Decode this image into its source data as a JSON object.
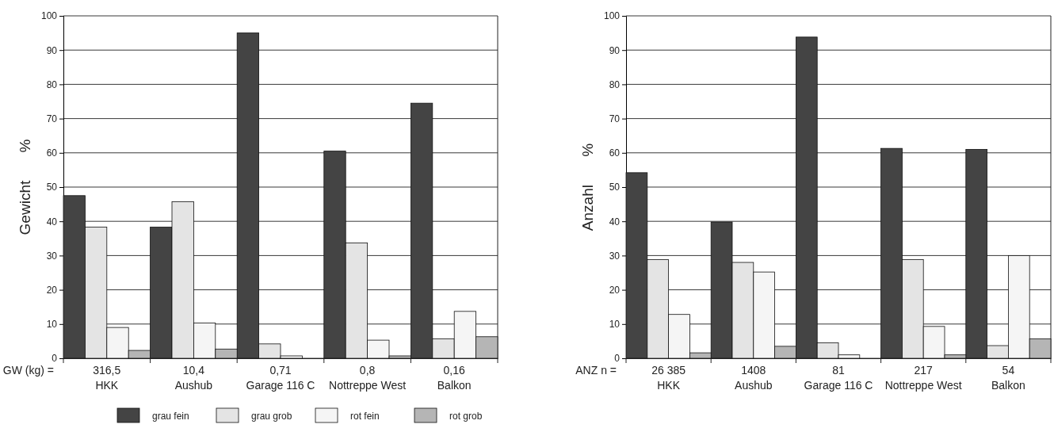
{
  "chart_data": [
    {
      "type": "bar",
      "ylabel": "Gewicht %",
      "categories": [
        "316,5\nHKK",
        "10,4\nAushub",
        "0,71\nGarage 116 C",
        "0,8\nNottreppe West",
        "0,16\nBalkon"
      ],
      "series": [
        {
          "name": "grau fein",
          "color": "#444444",
          "values": [
            47.5,
            38.3,
            95,
            60.5,
            74.5
          ]
        },
        {
          "name": "grau grob",
          "color": "#e4e4e4",
          "values": [
            38.3,
            45.7,
            4.2,
            33.7,
            5.7
          ]
        },
        {
          "name": "rot fein",
          "color": "#f5f5f5",
          "values": [
            9,
            10.3,
            0.7,
            5.3,
            13.7
          ]
        },
        {
          "name": "rot grob",
          "color": "#b5b5b5",
          "values": [
            2.3,
            2.7,
            null,
            0.7,
            6.3
          ]
        }
      ],
      "ylim": [
        0,
        100
      ],
      "yticks": [
        0,
        10,
        20,
        30,
        40,
        50,
        60,
        70,
        80,
        90,
        100
      ],
      "grid": "y",
      "legend": "bottom",
      "annotations": [
        "GW (kg) ="
      ]
    },
    {
      "type": "bar",
      "ylabel": "Anzahl %",
      "categories": [
        "26 385\nHKK",
        "1408\nAushub",
        "81\nGarage 116 C",
        "217\nNottreppe West",
        "54\nBalkon"
      ],
      "series": [
        {
          "color": "#444444",
          "values": [
            54.2,
            39.8,
            93.8,
            61.3,
            61
          ]
        },
        {
          "color": "#e4e4e4",
          "values": [
            28.8,
            28,
            4.5,
            28.8,
            3.7
          ]
        },
        {
          "color": "#f5f5f5",
          "values": [
            12.8,
            25.2,
            1,
            9.3,
            30
          ]
        },
        {
          "color": "#b5b5b5",
          "values": [
            1.6,
            3.5,
            null,
            1,
            5.7
          ]
        }
      ],
      "ylim": [
        0,
        100
      ],
      "yticks": [
        0,
        10,
        20,
        30,
        40,
        50,
        60,
        70,
        80,
        90,
        100
      ],
      "grid": "y",
      "annotations": [
        "ANZ  n ="
      ]
    }
  ]
}
